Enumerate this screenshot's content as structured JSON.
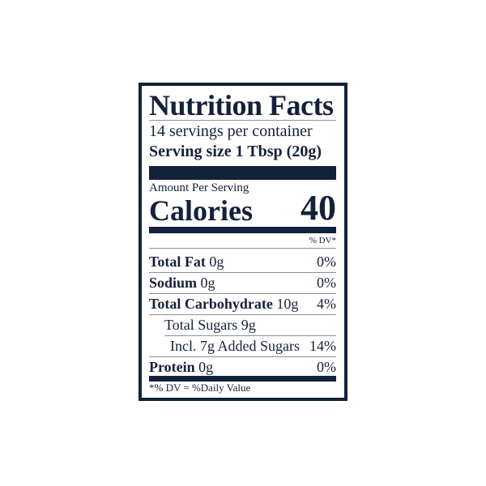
{
  "title": "Nutrition Facts",
  "servings_per_container": "14 servings per container",
  "serving_size_label": "Serving size",
  "serving_size_value": "1 Tbsp (20g)",
  "amount_per_serving": "Amount Per Serving",
  "calories_label": "Calories",
  "calories_value": "40",
  "dv_header": "% DV*",
  "rows": [
    {
      "label": "Total Fat",
      "amount": "0g",
      "dv": "0%"
    },
    {
      "label": "Sodium",
      "amount": "0g",
      "dv": "0%"
    },
    {
      "label": "Total Carbohydrate",
      "amount": "10g",
      "dv": "4%"
    },
    {
      "label": "Total Sugars 9g",
      "amount": "",
      "dv": ""
    },
    {
      "label": "Incl. 7g Added Sugars",
      "amount": "",
      "dv": "14%"
    },
    {
      "label": "Protein",
      "amount": "0g",
      "dv": "0%"
    }
  ],
  "footnote": "*% DV = %Daily Value",
  "colors": {
    "ink": "#14213a",
    "background": "#ffffff"
  }
}
